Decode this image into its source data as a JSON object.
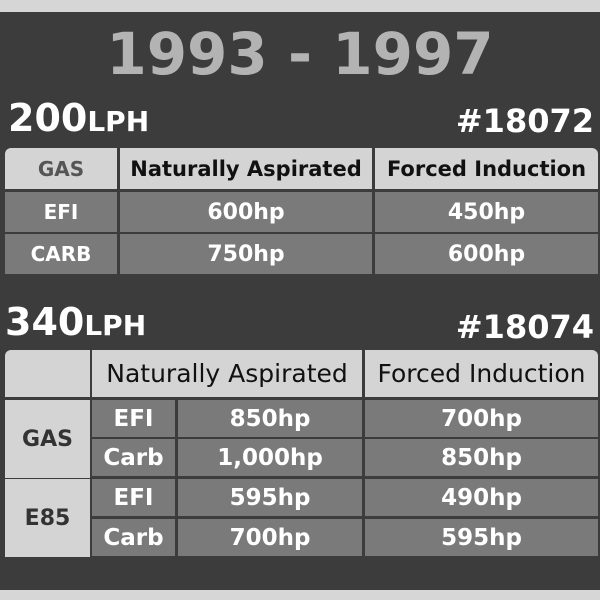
{
  "title": "1993 - 1997",
  "sections": [
    {
      "flow": "200",
      "unit": "LPH",
      "part": "#18072",
      "table": {
        "header": [
          "GAS",
          "Naturally Aspirated",
          "Forced Induction"
        ],
        "rows": [
          [
            "EFI",
            "600hp",
            "450hp"
          ],
          [
            "CARB",
            "750hp",
            "600hp"
          ]
        ]
      }
    },
    {
      "flow": "340",
      "unit": "LPH",
      "part": "#18074",
      "table": {
        "header": [
          "Naturally Aspirated",
          "Forced Induction"
        ],
        "groups": [
          {
            "fuel": "GAS",
            "rows": [
              [
                "EFI",
                "850hp",
                "700hp"
              ],
              [
                "Carb",
                "1,000hp",
                "850hp"
              ]
            ]
          },
          {
            "fuel": "E85",
            "rows": [
              [
                "EFI",
                "595hp",
                "490hp"
              ],
              [
                "Carb",
                "700hp",
                "595hp"
              ]
            ]
          }
        ]
      }
    }
  ]
}
